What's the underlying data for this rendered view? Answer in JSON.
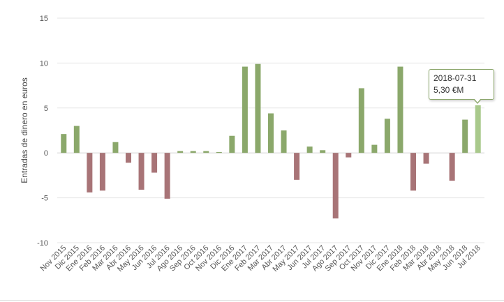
{
  "chart_data": {
    "type": "bar",
    "title": "",
    "xlabel": "",
    "ylabel": "Entradas de dinero en euros",
    "ylim": [
      -10,
      15
    ],
    "yticks": [
      15,
      10,
      5,
      0,
      -5,
      -10
    ],
    "grid": true,
    "legend": "none",
    "colors": {
      "positive": "#8ba86b",
      "negative": "#a87477",
      "highlight": "#a9c98c"
    },
    "categories": [
      "Nov 2015",
      "Dic 2015",
      "Ene 2016",
      "Feb 2016",
      "Mar 2016",
      "Abr 2016",
      "May 2016",
      "Jun 2016",
      "Jul 2016",
      "Ago 2016",
      "Sep 2016",
      "Oct 2016",
      "Nov 2016",
      "Dic 2016",
      "Ene 2017",
      "Feb 2017",
      "Mar 2017",
      "Abr 2017",
      "May 2017",
      "Jun 2017",
      "Jul 2017",
      "Ago 2017",
      "Sep 2017",
      "Oct 2017",
      "Nov 2017",
      "Dic 2017",
      "Ene 2018",
      "Feb 2018",
      "Mar 2018",
      "Abr 2018",
      "May 2018",
      "Jun 2018",
      "Jul 2018"
    ],
    "values": [
      2.1,
      3.0,
      -4.4,
      -4.2,
      1.2,
      -1.1,
      -4.1,
      -2.2,
      -5.1,
      0.2,
      0.2,
      0.2,
      0.1,
      1.9,
      9.6,
      9.9,
      4.4,
      2.5,
      -3.0,
      0.7,
      0.3,
      -7.3,
      -0.5,
      7.2,
      0.9,
      3.8,
      9.6,
      -4.2,
      -1.2,
      0.0,
      -3.1,
      3.7,
      5.3
    ],
    "highlight_index": 32
  },
  "tooltip": {
    "date": "2018-07-31",
    "value": "5,30 €M"
  }
}
